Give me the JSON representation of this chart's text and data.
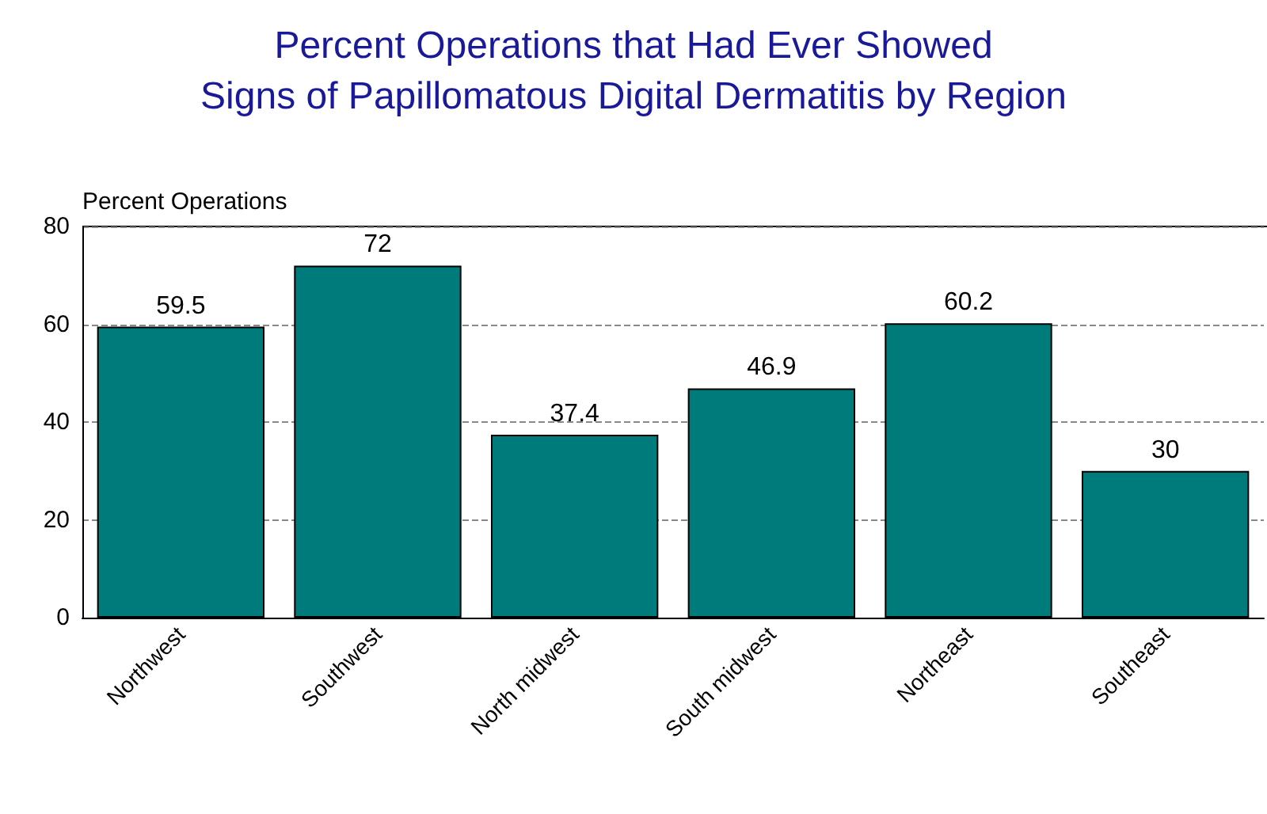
{
  "chart_data": {
    "type": "bar",
    "title": "Percent Operations that Had Ever Showed\nSigns of Papillomatous Digital Dermatitis by Region",
    "ylabel": "Percent Operations",
    "categories": [
      "Northwest",
      "Southwest",
      "North midwest",
      "South midwest",
      "Northeast",
      "Southeast"
    ],
    "values": [
      59.5,
      72,
      37.4,
      46.9,
      60.2,
      30
    ],
    "color": "#007b7b",
    "ylim": [
      0,
      80
    ],
    "yticks": [
      0,
      20,
      40,
      60,
      80
    ],
    "grid": "y",
    "data_labels": true
  }
}
